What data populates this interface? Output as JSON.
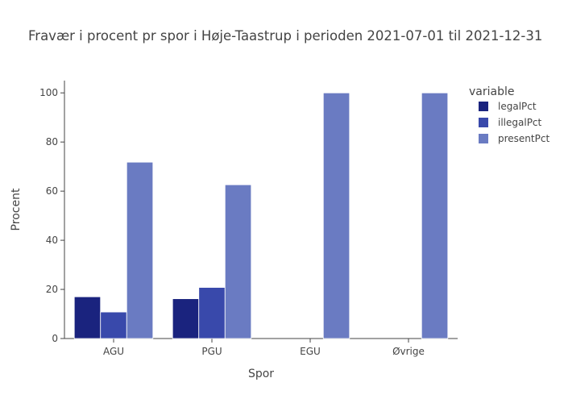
{
  "chart_data": {
    "type": "bar",
    "title": "Fravær i procent pr spor i Høje-Taastrup i perioden 2021-07-01 til 2021-12-31",
    "xlabel": "Spor",
    "ylabel": "Procent",
    "categories": [
      "AGU",
      "PGU",
      "EGU",
      "Øvrige"
    ],
    "ylim": [
      0,
      105
    ],
    "yticks": [
      0,
      20,
      40,
      60,
      80,
      100
    ],
    "grid": false,
    "legend": {
      "title": "variable",
      "placement": "top-right"
    },
    "series": [
      {
        "name": "legalPct",
        "color": "#1a237e",
        "values": [
          17,
          16.2,
          0,
          0
        ]
      },
      {
        "name": "illegalPct",
        "color": "#3949ab",
        "values": [
          10.8,
          20.8,
          0,
          0
        ]
      },
      {
        "name": "presentPct",
        "color": "#6a7bc2",
        "values": [
          71.8,
          62.6,
          100,
          100
        ]
      }
    ]
  }
}
